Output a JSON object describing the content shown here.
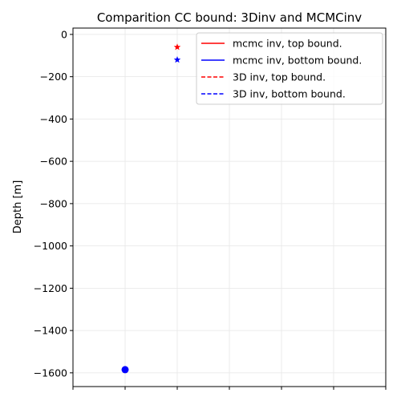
{
  "chart_data": {
    "type": "scatter",
    "title": "Comparition CC bound: 3Dinv and MCMCinv",
    "xlabel": "",
    "ylabel": "Depth [m]",
    "ylim": [
      -1665,
      30
    ],
    "y_ticks": [
      0,
      -200,
      -400,
      -600,
      -800,
      -1000,
      -1200,
      -1400,
      -1600
    ],
    "y_tick_labels": [
      "0",
      "−200",
      "−400",
      "−600",
      "−800",
      "−1000",
      "−1200",
      "−1400",
      "−1600"
    ],
    "x_tick_count": 7,
    "grid": true,
    "legend": {
      "placement": "top-right",
      "entries": [
        {
          "label": "mcmc inv, top bound.",
          "color": "#ff0000",
          "linestyle": "solid"
        },
        {
          "label": "mcmc inv, bottom bound.",
          "color": "#0000ff",
          "linestyle": "solid"
        },
        {
          "label": "3D inv, top bound.",
          "color": "#ff0000",
          "linestyle": "dashed"
        },
        {
          "label": "3D inv, bottom bound.",
          "color": "#0000ff",
          "linestyle": "dashed"
        }
      ]
    },
    "points": [
      {
        "x": 2,
        "y": -60,
        "marker": "star",
        "color": "#ff0000"
      },
      {
        "x": 2,
        "y": -120,
        "marker": "star",
        "color": "#0000ff"
      },
      {
        "x": 1,
        "y": -1585,
        "marker": "circle",
        "color": "#0000ff"
      }
    ],
    "xlim": [
      0,
      6
    ]
  }
}
